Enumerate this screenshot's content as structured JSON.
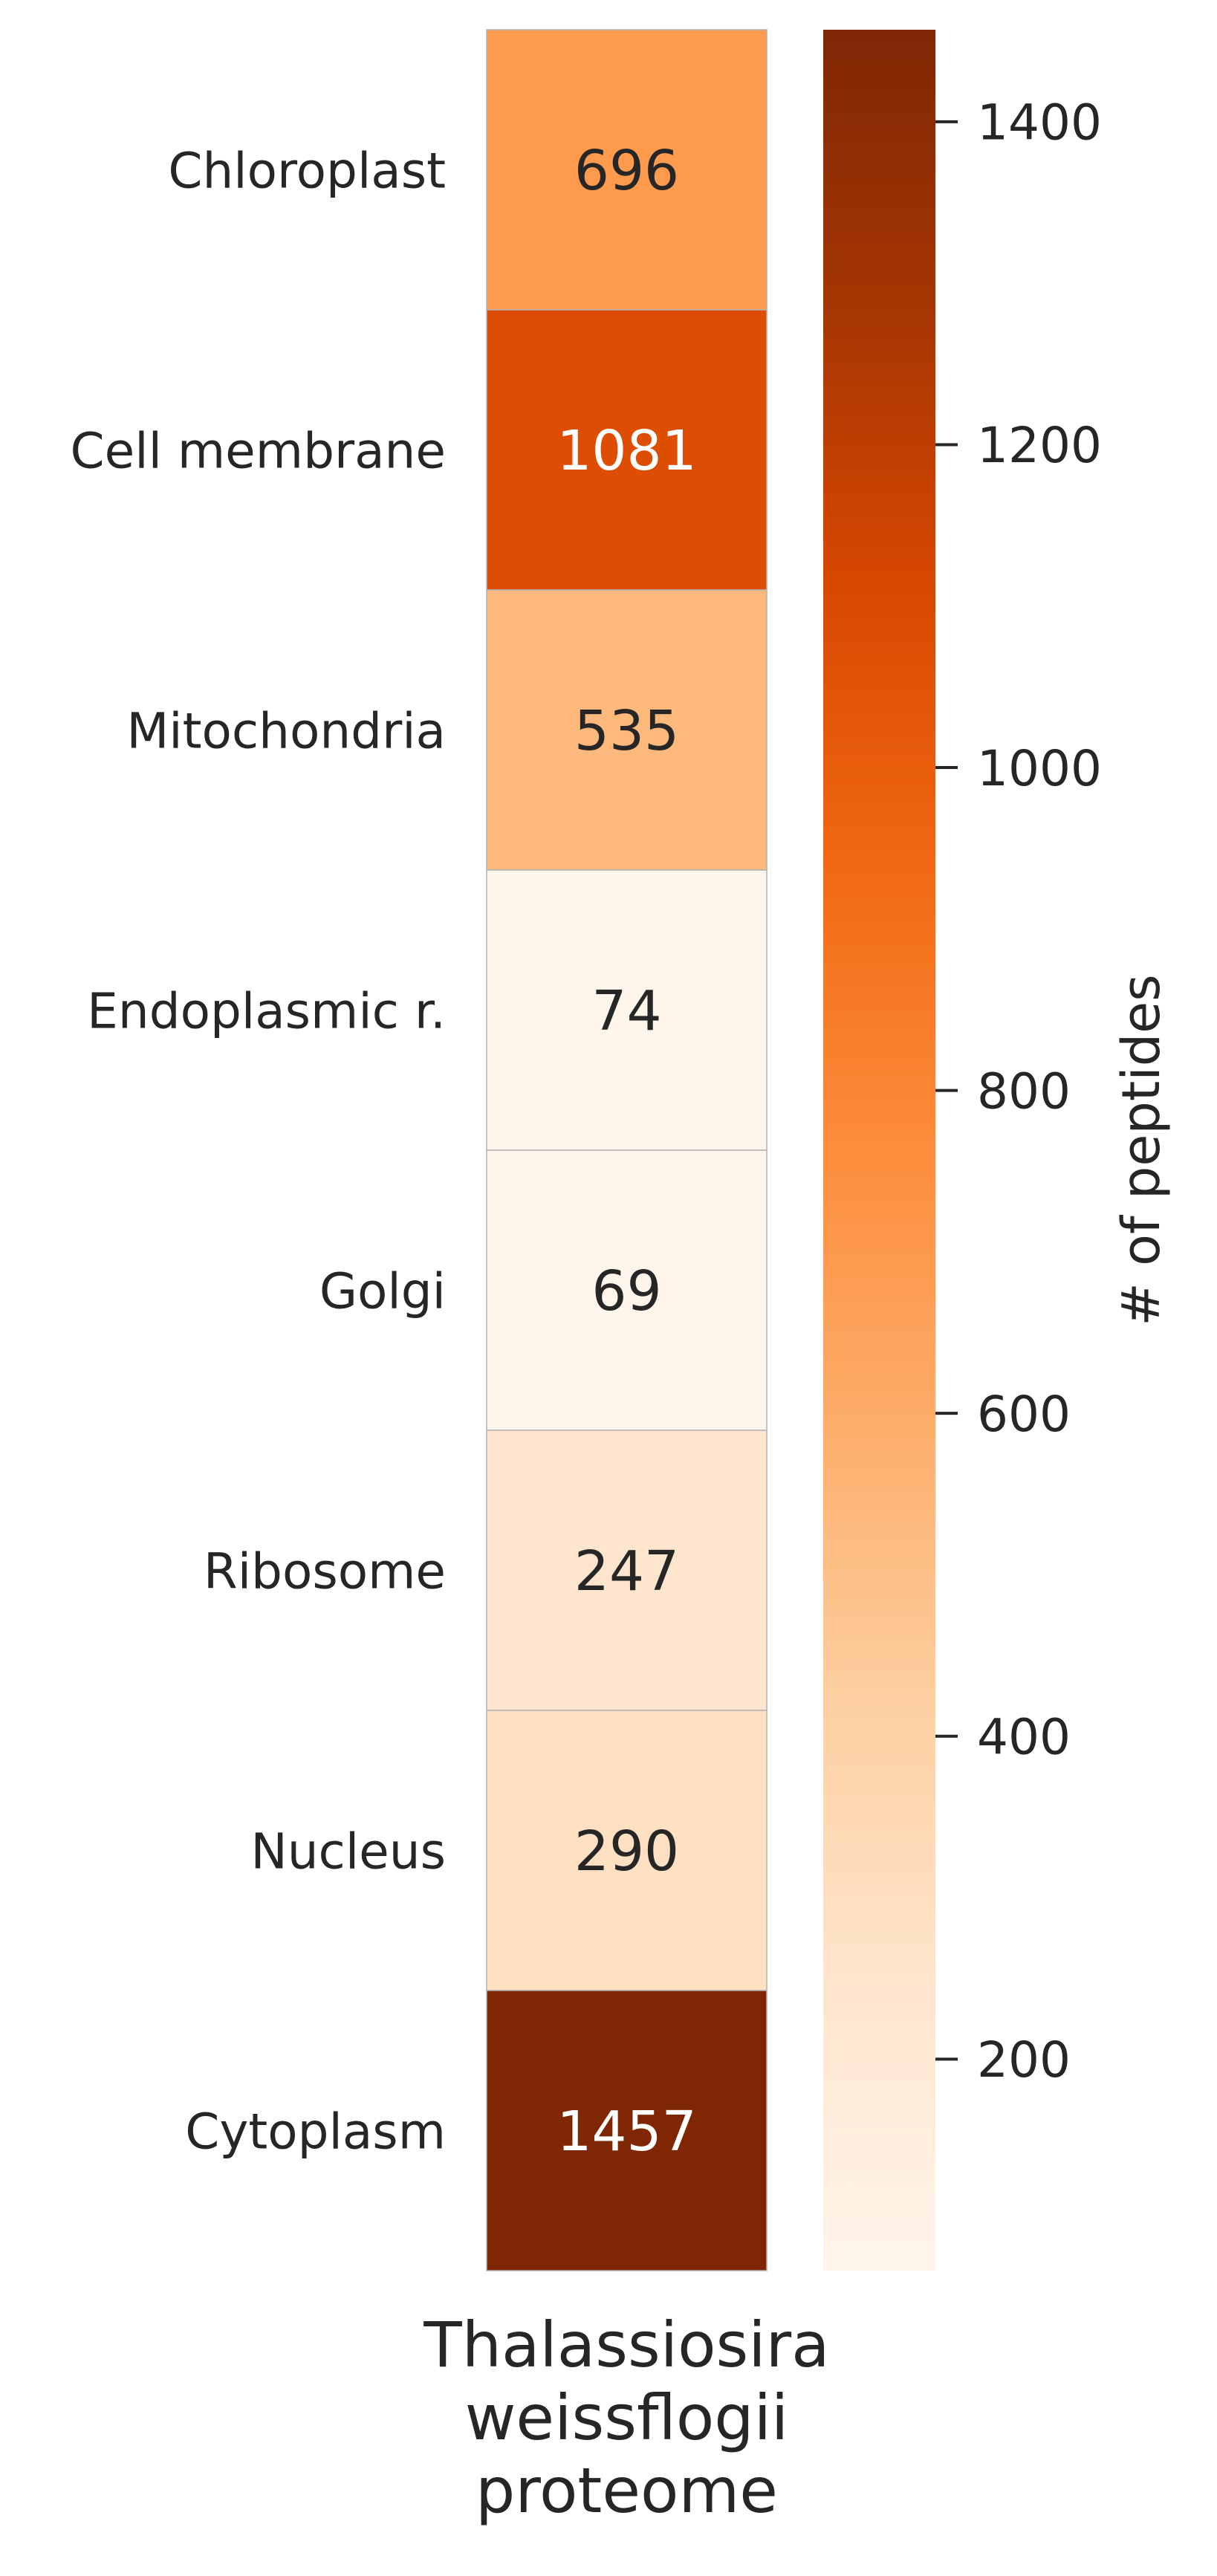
{
  "chart_data": {
    "type": "heatmap",
    "rows": [
      "Chloroplast",
      "Cell membrane",
      "Mitochondria",
      "Endoplasmic r.",
      "Golgi",
      "Ribosome",
      "Nucleus",
      "Cytoplasm"
    ],
    "columns": [
      "Thalassiosira weissflogii proteome"
    ],
    "column_label_lines": [
      "Thalassiosira",
      "weissflogii",
      "proteome"
    ],
    "values": [
      696,
      1081,
      535,
      74,
      69,
      247,
      290,
      1457
    ],
    "colormap": "Oranges",
    "color_range": [
      69,
      1457
    ],
    "colorbar": {
      "label": "# of peptides",
      "ticks": [
        200,
        400,
        600,
        800,
        1000,
        1200,
        1400
      ],
      "position": "right"
    },
    "annotations": true,
    "grid": false,
    "title": "",
    "xlabel": "",
    "ylabel": ""
  }
}
